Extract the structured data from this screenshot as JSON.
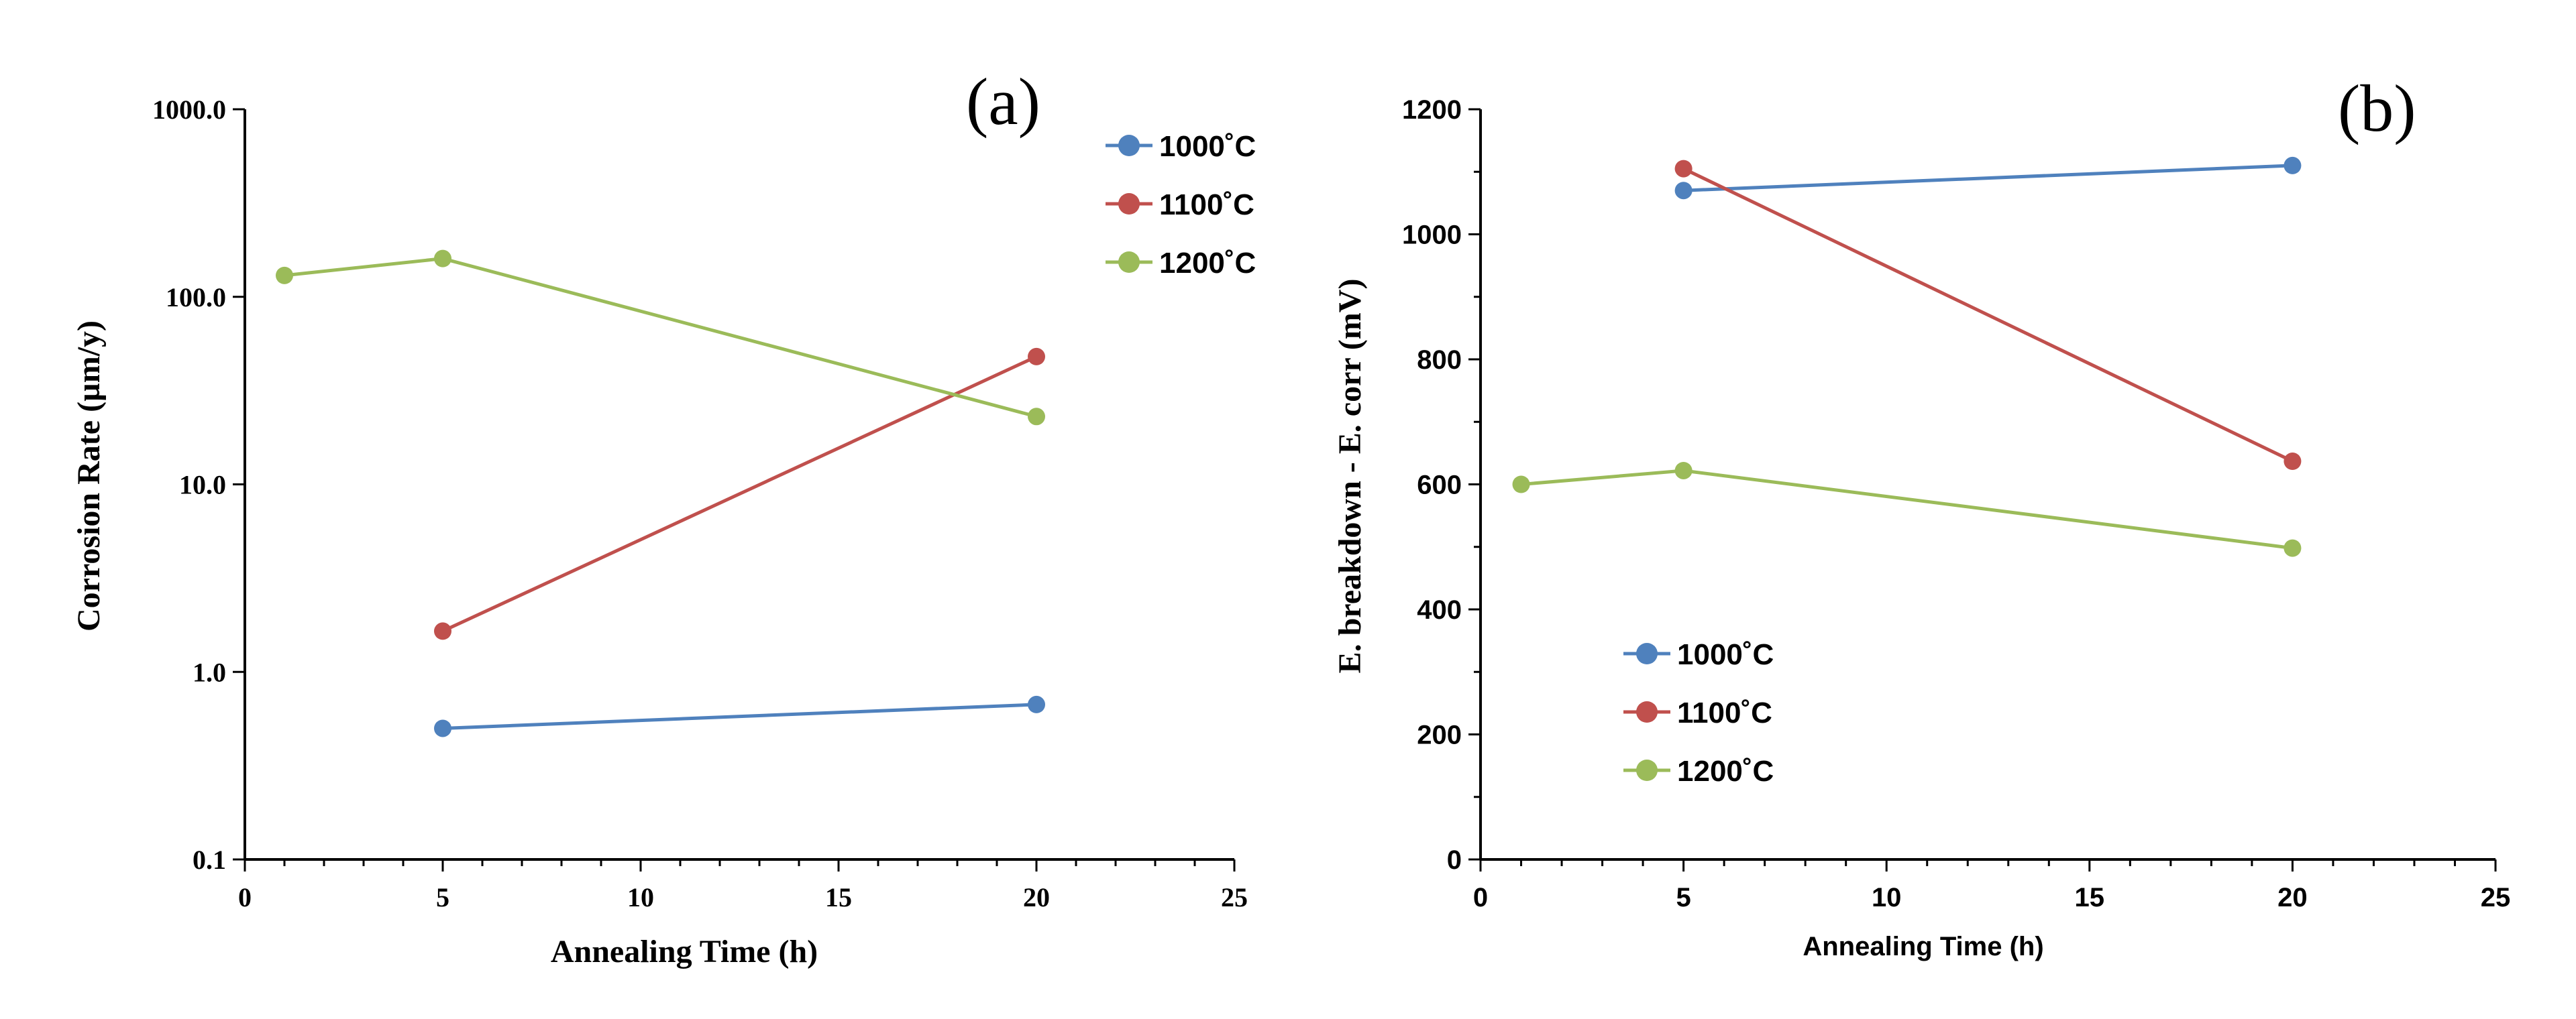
{
  "chart_data": [
    {
      "panel": "(a)",
      "type": "line",
      "yscale": "log",
      "xlabel": "Annealing Time (h)",
      "ylabel": "Corrosion Rate (µm/y)",
      "xlim": [
        0,
        25
      ],
      "ylim": [
        0.1,
        1000
      ],
      "xticks": [
        0,
        5,
        10,
        15,
        20,
        25
      ],
      "xtick_labels": [
        "0",
        "5",
        "10",
        "15",
        "20",
        "25"
      ],
      "yticks": [
        0.1,
        1,
        10,
        100,
        1000
      ],
      "ytick_labels": [
        "0.1",
        "1.0",
        "10.0",
        "100.0",
        "1000.0"
      ],
      "legend_position": "top-right",
      "series": [
        {
          "name": "1000˚C",
          "color": "#4f81bd",
          "x": [
            5,
            20
          ],
          "y": [
            0.5,
            0.67
          ]
        },
        {
          "name": "1100˚C",
          "color": "#c0504d",
          "x": [
            5,
            20
          ],
          "y": [
            1.65,
            48
          ]
        },
        {
          "name": "1200˚C",
          "color": "#9bbb59",
          "x": [
            1,
            5,
            20
          ],
          "y": [
            130,
            160,
            23
          ]
        }
      ]
    },
    {
      "panel": "(b)",
      "type": "line",
      "yscale": "linear",
      "xlabel": "Annealing Time (h)",
      "ylabel": "E. breakdown - E. corr (mV)",
      "xlim": [
        0,
        25
      ],
      "ylim": [
        0,
        1200
      ],
      "xticks": [
        0,
        5,
        10,
        15,
        20,
        25
      ],
      "xtick_labels": [
        "0",
        "5",
        "10",
        "15",
        "20",
        "25"
      ],
      "yticks": [
        0,
        200,
        400,
        600,
        800,
        1000,
        1200
      ],
      "ytick_labels": [
        "0",
        "200",
        "400",
        "600",
        "800",
        "1000",
        "1200"
      ],
      "legend_position": "lower-left",
      "series": [
        {
          "name": "1000˚C",
          "color": "#4f81bd",
          "x": [
            5,
            20
          ],
          "y": [
            1070,
            1110
          ]
        },
        {
          "name": "1100˚C",
          "color": "#c0504d",
          "x": [
            5,
            20
          ],
          "y": [
            1105,
            637
          ]
        },
        {
          "name": "1200˚C",
          "color": "#9bbb59",
          "x": [
            1,
            5,
            20
          ],
          "y": [
            600,
            622,
            498
          ]
        }
      ]
    }
  ]
}
